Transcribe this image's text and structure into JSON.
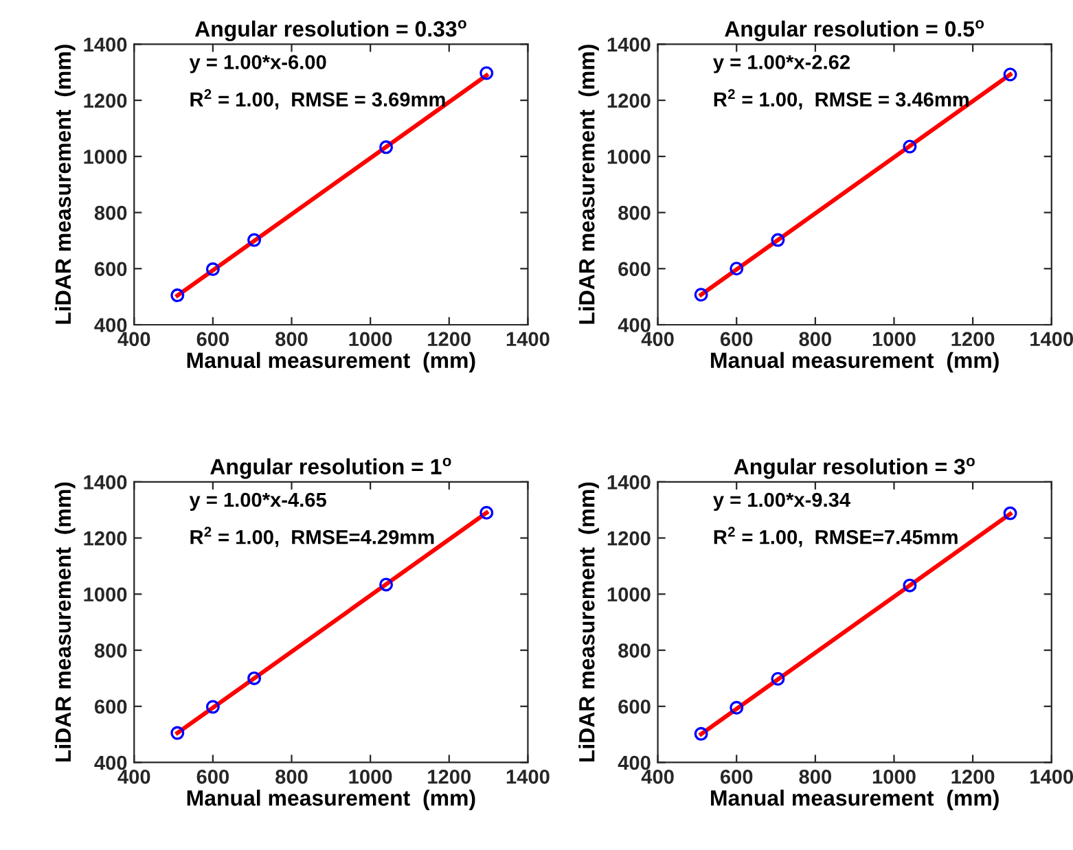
{
  "chart_data": [
    {
      "type": "scatter",
      "title": "Angular resolution = 0.33$^{o}$",
      "xlabel": "Manual measurement  (mm)",
      "ylabel": "LiDAR measurement  (mm)",
      "annotations": [
        "y = 1.00*x-6.00",
        "R$^{2}$ = 1.00,  RMSE = 3.69mm"
      ],
      "xlim": [
        400,
        1400
      ],
      "ylim": [
        400,
        1400
      ],
      "xticks": [
        400,
        600,
        800,
        1000,
        1200,
        1400
      ],
      "yticks": [
        400,
        600,
        800,
        1000,
        1200,
        1400
      ],
      "grid": false,
      "series": [
        {
          "color": "#0000ff",
          "marker": "circle",
          "x": [
            510,
            600,
            705,
            1040,
            1295
          ],
          "values": [
            505,
            598,
            702,
            1033,
            1297
          ]
        },
        {
          "type": "line",
          "color": "#ff0000",
          "marker": "none",
          "x": [
            510,
            1295
          ],
          "values": [
            504,
            1289
          ]
        }
      ]
    },
    {
      "type": "scatter",
      "title": "Angular resolution = 0.5$^{o}$",
      "xlabel": "Manual measurement  (mm)",
      "ylabel": "LiDAR measurement  (mm)",
      "annotations": [
        "y = 1.00*x-2.62",
        "R$^{2}$ = 1.00,  RMSE = 3.46mm"
      ],
      "xlim": [
        400,
        1400
      ],
      "ylim": [
        400,
        1400
      ],
      "xticks": [
        400,
        600,
        800,
        1000,
        1200,
        1400
      ],
      "yticks": [
        400,
        600,
        800,
        1000,
        1200,
        1400
      ],
      "grid": false,
      "series": [
        {
          "color": "#0000ff",
          "marker": "circle",
          "x": [
            510,
            600,
            705,
            1040,
            1295
          ],
          "values": [
            507,
            600,
            702,
            1035,
            1292
          ]
        },
        {
          "type": "line",
          "color": "#ff0000",
          "marker": "none",
          "x": [
            510,
            1295
          ],
          "values": [
            507,
            1292
          ]
        }
      ]
    },
    {
      "type": "scatter",
      "title": "Angular resolution = 1$^{o}$",
      "xlabel": "Manual measurement  (mm)",
      "ylabel": "LiDAR measurement  (mm)",
      "annotations": [
        "y = 1.00*x-4.65",
        "R$^{2}$ = 1.00,  RMSE=4.29mm"
      ],
      "xlim": [
        400,
        1400
      ],
      "ylim": [
        400,
        1400
      ],
      "xticks": [
        400,
        600,
        800,
        1000,
        1200,
        1400
      ],
      "yticks": [
        400,
        600,
        800,
        1000,
        1200,
        1400
      ],
      "grid": false,
      "series": [
        {
          "color": "#0000ff",
          "marker": "circle",
          "x": [
            510,
            600,
            705,
            1040,
            1295
          ],
          "values": [
            505,
            598,
            700,
            1034,
            1290
          ]
        },
        {
          "type": "line",
          "color": "#ff0000",
          "marker": "none",
          "x": [
            510,
            1295
          ],
          "values": [
            505,
            1290
          ]
        }
      ]
    },
    {
      "type": "scatter",
      "title": "Angular resolution = 3$^{o}$",
      "xlabel": "Manual measurement  (mm)",
      "ylabel": "LiDAR measurement  (mm)",
      "annotations": [
        "y = 1.00*x-9.34",
        "R$^{2}$ = 1.00,  RMSE=7.45mm"
      ],
      "xlim": [
        400,
        1400
      ],
      "ylim": [
        400,
        1400
      ],
      "xticks": [
        400,
        600,
        800,
        1000,
        1200,
        1400
      ],
      "yticks": [
        400,
        600,
        800,
        1000,
        1200,
        1400
      ],
      "grid": false,
      "series": [
        {
          "color": "#0000ff",
          "marker": "circle",
          "x": [
            510,
            600,
            705,
            1040,
            1295
          ],
          "values": [
            502,
            595,
            698,
            1031,
            1288
          ]
        },
        {
          "type": "line",
          "color": "#ff0000",
          "marker": "none",
          "x": [
            510,
            1295
          ],
          "values": [
            501,
            1286
          ]
        }
      ]
    }
  ]
}
